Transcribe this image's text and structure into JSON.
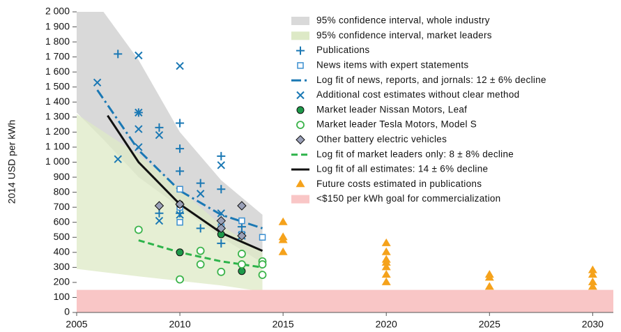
{
  "chart_data": {
    "type": "scatter",
    "ylabel": "2014 USD per kWh",
    "xlim": [
      2005,
      2031
    ],
    "xticks": [
      2005,
      2010,
      2015,
      2020,
      2025,
      2030
    ],
    "ylim": [
      0,
      2000
    ],
    "yticks": [
      0,
      100,
      200,
      300,
      400,
      500,
      600,
      700,
      800,
      900,
      {
        "value": 1000,
        "label": "1 000"
      },
      {
        "value": 1100,
        "label": "1 100"
      },
      {
        "value": 1200,
        "label": "1 200"
      },
      {
        "value": 1300,
        "label": "1 300"
      },
      {
        "value": 1400,
        "label": "1 400"
      },
      {
        "value": 1500,
        "label": "1 500"
      },
      {
        "value": 1600,
        "label": "1 600"
      },
      {
        "value": 1700,
        "label": "1 700"
      },
      {
        "value": 1800,
        "label": "1 800"
      },
      {
        "value": 1900,
        "label": "1 900"
      },
      {
        "value": 2000,
        "label": "2 000"
      }
    ],
    "series": [
      {
        "name": "95% confidence interval, whole industry",
        "kind": "band",
        "color": "#d9d9d9",
        "x": [
          2005,
          2006.3,
          2008,
          2010,
          2012,
          2014
        ],
        "upper": [
          2600,
          2000,
          1680,
          1200,
          880,
          650
        ],
        "lower": [
          1330,
          1150,
          900,
          700,
          500,
          330
        ]
      },
      {
        "name": "95% confidence interval, market leaders",
        "kind": "band",
        "color": "#dde9c6",
        "x": [
          2005,
          2008,
          2010,
          2012,
          2014
        ],
        "upper": [
          1320,
          1050,
          820,
          580,
          400
        ],
        "lower": [
          290,
          240,
          210,
          180,
          140
        ]
      },
      {
        "name": "Publications",
        "kind": "points",
        "marker": "plus",
        "color": "#1a78b4",
        "x": [
          2007,
          2008,
          2009,
          2009,
          2010,
          2010,
          2010,
          2010,
          2011,
          2011,
          2012,
          2012,
          2012,
          2013
        ],
        "values": [
          1720,
          1330,
          1230,
          660,
          1260,
          1090,
          940,
          660,
          860,
          560,
          1040,
          820,
          460,
          570
        ]
      },
      {
        "name": "News items with expert statements",
        "kind": "points",
        "marker": "square",
        "color": "#3b8fd0",
        "x": [
          2010,
          2010,
          2010,
          2012,
          2013,
          2013,
          2014
        ],
        "values": [
          820,
          700,
          600,
          570,
          610,
          520,
          500
        ]
      },
      {
        "name": "Log fit of news, reports, and jornals: 12 ± 6% decline",
        "kind": "line",
        "style": "dashdot",
        "color": "#1a78b4",
        "x": [
          2006,
          2008,
          2010,
          2012,
          2014
        ],
        "values": [
          1480,
          1080,
          810,
          650,
          560
        ]
      },
      {
        "name": "Additional cost estimates without clear method",
        "kind": "points",
        "marker": "x",
        "color": "#1a78b4",
        "x": [
          2006,
          2007,
          2008,
          2008,
          2008,
          2008,
          2009,
          2009,
          2010,
          2010,
          2011,
          2012,
          2012,
          2013
        ],
        "values": [
          1530,
          1020,
          1710,
          1330,
          1220,
          1100,
          1180,
          610,
          1640,
          650,
          790,
          980,
          660,
          510
        ]
      },
      {
        "name": "Market leader Nissan Motors, Leaf",
        "kind": "points",
        "marker": "dot",
        "color": "#1e9a4a",
        "x": [
          2010,
          2010,
          2012,
          2013
        ],
        "values": [
          720,
          400,
          520,
          275
        ]
      },
      {
        "name": "Market leader Tesla Motors, Model S",
        "kind": "points",
        "marker": "circle",
        "color": "#3cb44b",
        "x": [
          2008,
          2010,
          2011,
          2011,
          2012,
          2013,
          2013,
          2014,
          2014,
          2014
        ],
        "values": [
          550,
          220,
          410,
          320,
          270,
          390,
          320,
          340,
          320,
          250
        ]
      },
      {
        "name": "Other battery electric vehicles",
        "kind": "points",
        "marker": "diamond",
        "color": "#9aa0b8",
        "x": [
          2009,
          2010,
          2012,
          2012,
          2013,
          2013
        ],
        "values": [
          710,
          720,
          610,
          560,
          710,
          510
        ]
      },
      {
        "name": "Log fit of market leaders only: 8 ± 8% decline",
        "kind": "line",
        "style": "dashed",
        "color": "#2db34a",
        "x": [
          2008,
          2010,
          2012,
          2014
        ],
        "values": [
          480,
          400,
          340,
          300
        ]
      },
      {
        "name": "Log fit of all estimates: 14 ± 6% decline",
        "kind": "line",
        "style": "solid",
        "color": "#111111",
        "x": [
          2006.5,
          2008,
          2010,
          2012,
          2014
        ],
        "values": [
          1310,
          1000,
          720,
          530,
          410
        ]
      },
      {
        "name": "Future costs estimated in publications",
        "kind": "points",
        "marker": "triangle",
        "color": "#f5a21b",
        "x": [
          2015,
          2015,
          2015,
          2015,
          2020,
          2020,
          2020,
          2020,
          2020,
          2020,
          2020,
          2025,
          2025,
          2025,
          2030,
          2030,
          2030,
          2030
        ],
        "values": [
          600,
          500,
          480,
          400,
          460,
          400,
          350,
          330,
          300,
          250,
          200,
          250,
          230,
          170,
          280,
          250,
          200,
          170
        ]
      },
      {
        "name": "<$150 per kWh goal for commercialization",
        "kind": "band",
        "color": "#f9c6c6",
        "x": [
          2005,
          2031
        ],
        "upper": [
          150,
          150
        ],
        "lower": [
          0,
          0
        ]
      }
    ]
  }
}
